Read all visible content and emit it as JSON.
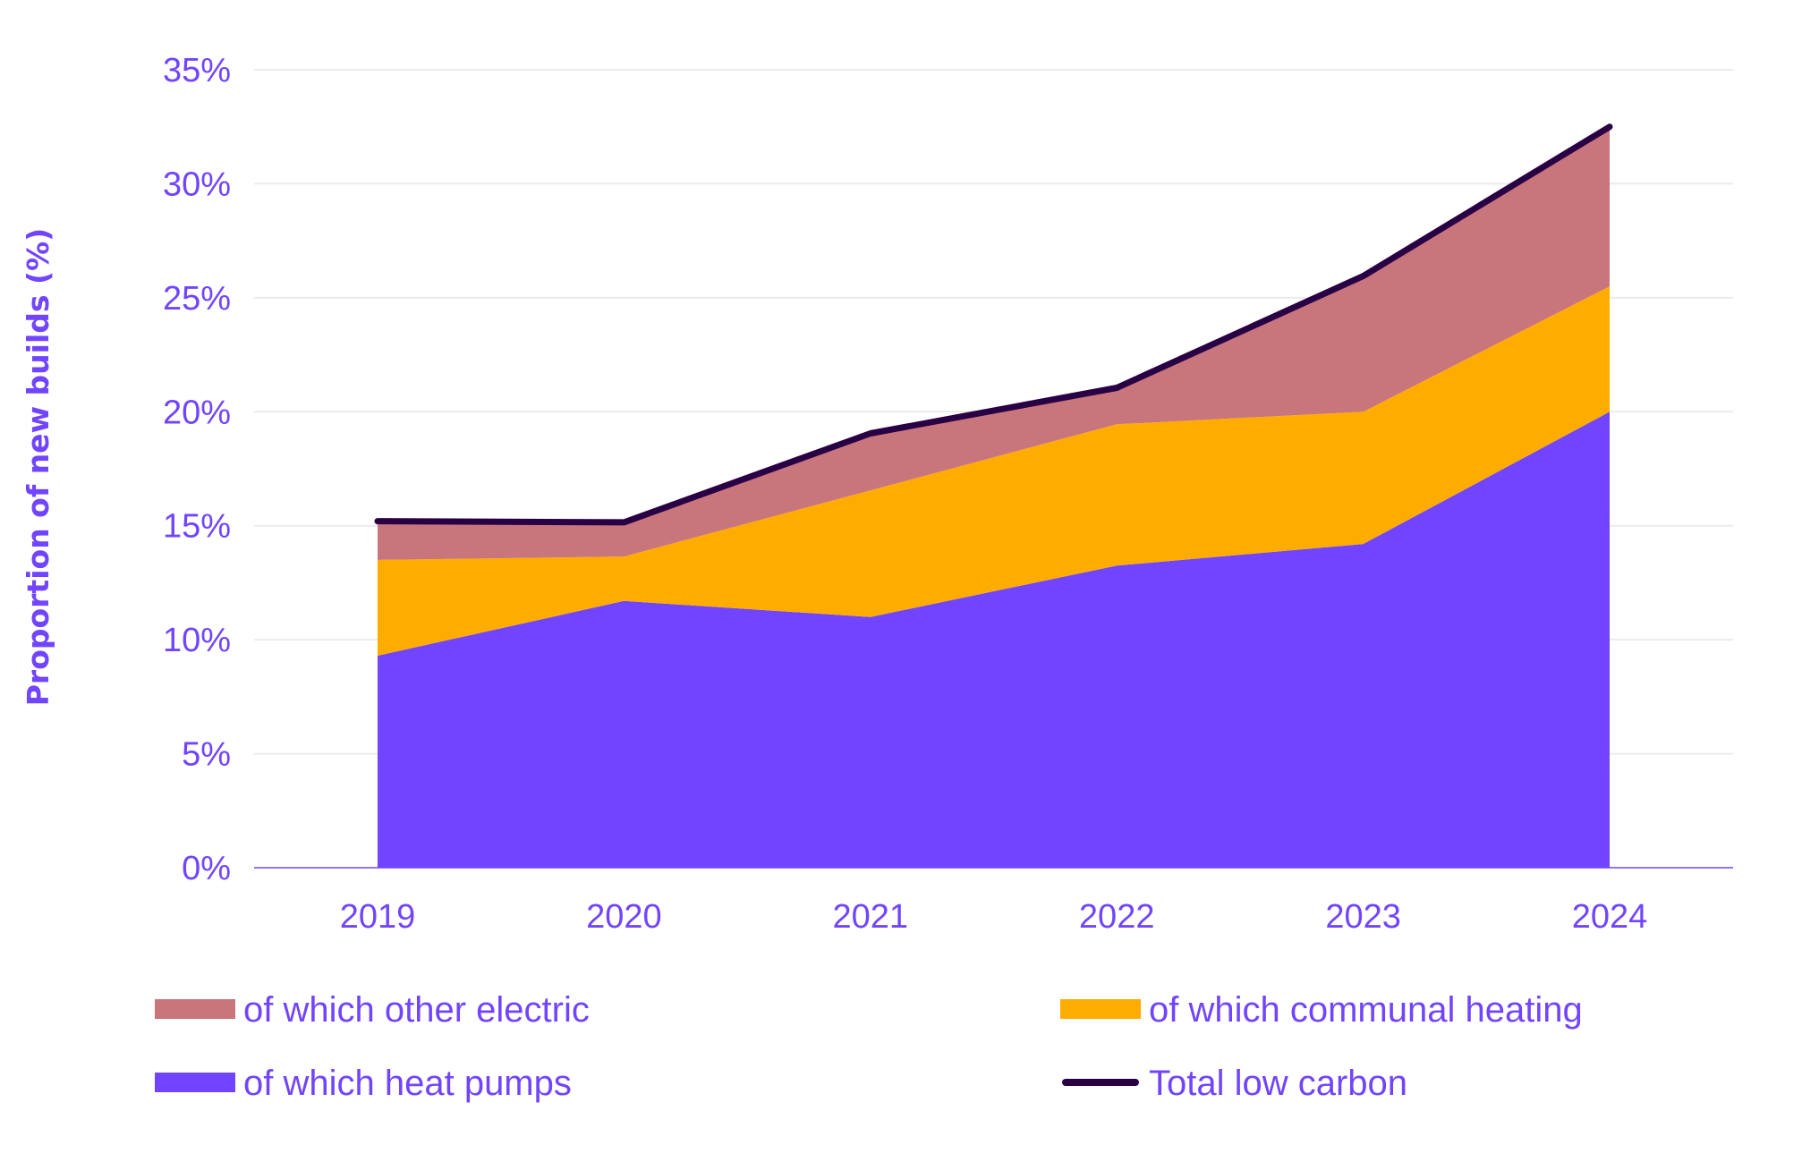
{
  "chart_data": {
    "type": "area",
    "stacked": true,
    "title": "",
    "xlabel": "",
    "ylabel": "Proportion of new builds (%)",
    "ylim": [
      0,
      35
    ],
    "yticks": [
      0,
      5,
      10,
      15,
      20,
      25,
      30,
      35
    ],
    "ytick_labels": [
      "0%",
      "5%",
      "10%",
      "15%",
      "20%",
      "25%",
      "30%",
      "35%"
    ],
    "categories": [
      "2019",
      "2020",
      "2021",
      "2022",
      "2023",
      "2024"
    ],
    "grid": "horizontal",
    "legend_position": "bottom",
    "series": [
      {
        "name": "of which heat pumps",
        "kind": "area",
        "color": "#7145ff",
        "values": [
          9.3,
          11.7,
          11.0,
          13.25,
          14.2,
          20.0
        ]
      },
      {
        "name": "of which communal heating",
        "kind": "area",
        "color": "#ffac00",
        "values": [
          4.2,
          1.95,
          5.55,
          6.2,
          5.8,
          5.5
        ]
      },
      {
        "name": "of which other electric",
        "kind": "area",
        "color": "#c9757c",
        "values": [
          1.7,
          1.5,
          2.5,
          1.6,
          5.95,
          7.0
        ]
      },
      {
        "name": "Total low carbon",
        "kind": "line",
        "color": "#2a0045",
        "values": [
          15.2,
          15.15,
          19.05,
          21.05,
          25.95,
          32.5
        ]
      }
    ],
    "legend": [
      {
        "label": "of which other electric",
        "series_index": 2,
        "swatch": "box"
      },
      {
        "label": "of which communal heating",
        "series_index": 1,
        "swatch": "box"
      },
      {
        "label": "of which heat pumps",
        "series_index": 0,
        "swatch": "box"
      },
      {
        "label": "Total low carbon",
        "series_index": 3,
        "swatch": "line"
      }
    ]
  },
  "colors": {
    "text": "#7145ff",
    "gridline": "#ebebeb",
    "axis": "#7145ff"
  }
}
